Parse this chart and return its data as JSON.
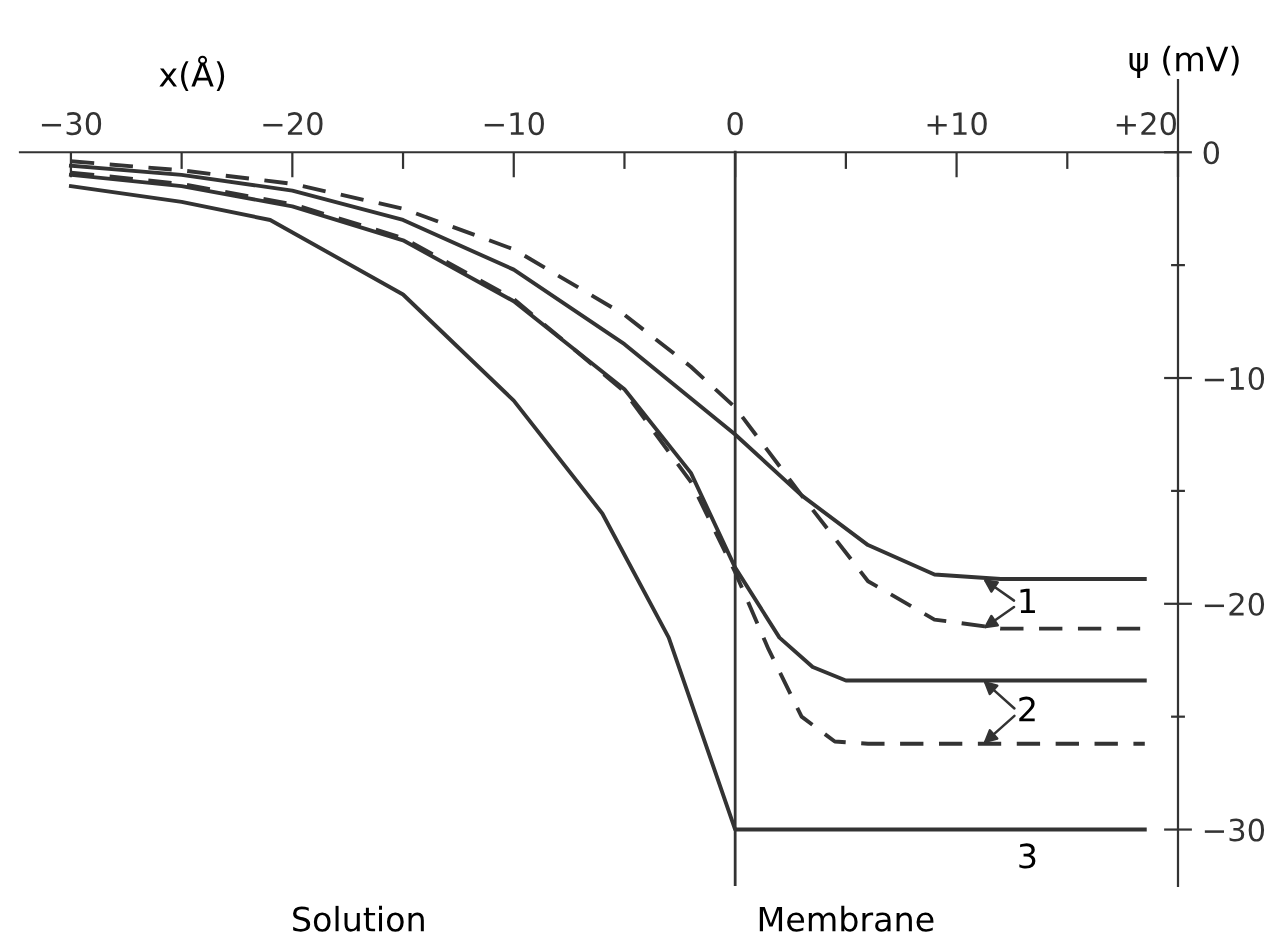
{
  "chart_data": {
    "type": "line",
    "xlabel": "x(Å)",
    "ylabel": "ψ (mV)",
    "xlim": [
      -32.3,
      20
    ],
    "ylim": [
      -32.5,
      3.2
    ],
    "xticks": [
      {
        "value": -30,
        "label": "−30"
      },
      {
        "value": -25,
        "label": null
      },
      {
        "value": -20,
        "label": "−20"
      },
      {
        "value": -15,
        "label": null
      },
      {
        "value": -10,
        "label": "−10"
      },
      {
        "value": -5,
        "label": null
      },
      0,
      {
        "value": 5,
        "label": null
      },
      {
        "value": 10,
        "label": "+10"
      },
      {
        "value": 15,
        "label": null
      },
      {
        "value": 20,
        "label": "+20"
      }
    ],
    "yticks": [
      0,
      {
        "value": -5,
        "label": null
      },
      {
        "value": -10,
        "label": "−10"
      },
      {
        "value": -15,
        "label": null
      },
      {
        "value": -20,
        "label": "−20"
      },
      {
        "value": -25,
        "label": null
      },
      {
        "value": -30,
        "label": "−30"
      }
    ],
    "grid": false,
    "marker": "none",
    "ref_lines": [
      {
        "axis": "x",
        "value": 0,
        "color": "#333333"
      }
    ],
    "series": [
      {
        "color": "#333333",
        "line_style": "solid",
        "x": [
          -30,
          -25,
          -20,
          -15,
          -10,
          -5,
          0,
          3,
          6,
          9,
          12,
          18.5
        ],
        "values": [
          -0.6,
          -1.0,
          -1.7,
          -3.0,
          -5.2,
          -8.5,
          -12.5,
          -15.2,
          -17.4,
          -18.7,
          -18.9,
          -18.9
        ]
      },
      {
        "color": "#333333",
        "line_style": "dashed",
        "x": [
          -30,
          -25,
          -20,
          -15,
          -10,
          -5,
          -2,
          0,
          3,
          6,
          9,
          12,
          18.5
        ],
        "values": [
          -0.4,
          -0.8,
          -1.4,
          -2.5,
          -4.3,
          -7.2,
          -9.5,
          -11.3,
          -15.2,
          -19.0,
          -20.7,
          -21.1,
          -21.1
        ]
      },
      {
        "color": "#333333",
        "line_style": "solid",
        "x": [
          -30,
          -25,
          -20,
          -15,
          -10,
          -5,
          -2,
          0,
          2,
          3.5,
          5,
          18.5
        ],
        "values": [
          -1.0,
          -1.5,
          -2.4,
          -3.9,
          -6.6,
          -10.5,
          -14.2,
          -18.4,
          -21.5,
          -22.8,
          -23.4,
          -23.4
        ]
      },
      {
        "color": "#333333",
        "line_style": "dashed",
        "x": [
          -30,
          -25,
          -20,
          -15,
          -10,
          -5,
          -2,
          0,
          1.5,
          3,
          4.5,
          6,
          18.5
        ],
        "values": [
          -0.9,
          -1.4,
          -2.3,
          -3.8,
          -6.5,
          -10.6,
          -14.6,
          -18.6,
          -22.0,
          -25.0,
          -26.1,
          -26.2,
          -26.2
        ]
      },
      {
        "color": "#333333",
        "line_style": "solid",
        "x": [
          -30,
          -25,
          -21,
          -15,
          -10,
          -6,
          -3,
          0,
          18.5
        ],
        "values": [
          -1.5,
          -2.2,
          -3.0,
          -6.3,
          -11.0,
          -16.0,
          -21.5,
          -30.0,
          -30.0
        ]
      }
    ],
    "annotations": [
      "1",
      "2",
      "3",
      "Solution",
      "Membrane"
    ]
  }
}
